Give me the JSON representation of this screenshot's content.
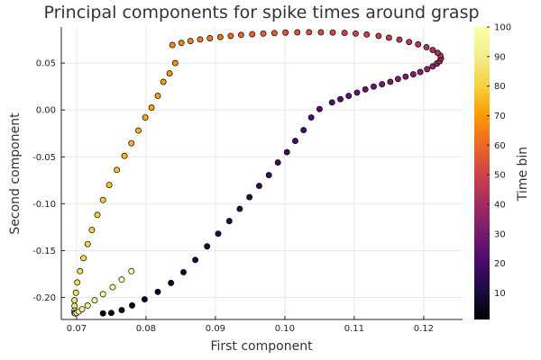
{
  "chart_data": {
    "type": "scatter",
    "title": "Principal components for spike times around grasp",
    "xlabel": "First component",
    "ylabel": "Second component",
    "colorbar_label": "Time bin",
    "xlim": [
      0.0678,
      0.1256
    ],
    "ylim": [
      -0.2235,
      0.0885
    ],
    "xticks": [
      0.07,
      0.08,
      0.09,
      0.1,
      0.11,
      0.12
    ],
    "xtick_labels": [
      "0.07",
      "0.08",
      "0.09",
      "0.10",
      "0.11",
      "0.12"
    ],
    "yticks": [
      0.05,
      0.0,
      -0.05,
      -0.1,
      -0.15,
      -0.2
    ],
    "ytick_labels": [
      "0.05",
      "0.00",
      "-0.05",
      "-0.10",
      "-0.15",
      "-0.20"
    ],
    "colorbar_range": [
      1,
      100
    ],
    "colorbar_ticks": [
      10,
      20,
      30,
      40,
      50,
      60,
      70,
      80,
      90,
      100
    ],
    "colorbar_tick_labels": [
      "10",
      "20",
      "30",
      "40",
      "50",
      "60",
      "70",
      "80",
      "90",
      "100"
    ],
    "colormap": "inferno",
    "grid": true,
    "legend": "none",
    "series": [
      {
        "time_bin": [
          1,
          2,
          3,
          4,
          5,
          6,
          7,
          8,
          9,
          10,
          11,
          12,
          13,
          14,
          15,
          16,
          17,
          18,
          19,
          20,
          21,
          22,
          23,
          24,
          25,
          26,
          27,
          28,
          29,
          30,
          31,
          32,
          33,
          34,
          35,
          36,
          37,
          38,
          39,
          40,
          41,
          42,
          43,
          44,
          45,
          46,
          47,
          48,
          49,
          50,
          51,
          52,
          53,
          54,
          55,
          56,
          57,
          58,
          59,
          60,
          61,
          62,
          63,
          64,
          65,
          66,
          67,
          68,
          69,
          70,
          71,
          72,
          73,
          74,
          75,
          76,
          77,
          78,
          79,
          80,
          81,
          82,
          83,
          84,
          85,
          86,
          87,
          88,
          89,
          90,
          91,
          92,
          93,
          94,
          95,
          96,
          97,
          98,
          99,
          100
        ],
        "x": [
          0.0738,
          0.075,
          0.0765,
          0.078,
          0.0798,
          0.0817,
          0.0836,
          0.0854,
          0.0871,
          0.0888,
          0.0904,
          0.092,
          0.0935,
          0.0949,
          0.0963,
          0.0977,
          0.099,
          0.1003,
          0.1015,
          0.1027,
          0.1038,
          0.105,
          0.1068,
          0.108,
          0.1092,
          0.1104,
          0.1116,
          0.1128,
          0.114,
          0.1152,
          0.1163,
          0.1174,
          0.1185,
          0.1195,
          0.1205,
          0.1213,
          0.1219,
          0.1223,
          0.1225,
          0.1224,
          0.122,
          0.1213,
          0.1204,
          0.1192,
          0.1179,
          0.1165,
          0.115,
          0.1135,
          0.1118,
          0.1102,
          0.1086,
          0.1069,
          0.1052,
          0.1035,
          0.1018,
          0.1001,
          0.0985,
          0.0969,
          0.0953,
          0.0937,
          0.0922,
          0.0907,
          0.0892,
          0.0878,
          0.0864,
          0.0851,
          0.0838,
          0.0842,
          0.0834,
          0.0825,
          0.0817,
          0.0808,
          0.0799,
          0.0789,
          0.0779,
          0.0769,
          0.0758,
          0.0747,
          0.0738,
          0.073,
          0.0722,
          0.0716,
          0.071,
          0.0705,
          0.0701,
          0.0699,
          0.0697,
          0.0697,
          0.0697,
          0.0697,
          0.0698,
          0.07,
          0.0703,
          0.0708,
          0.0716,
          0.0726,
          0.0738,
          0.0752,
          0.0765,
          0.0779
        ],
        "y": [
          -0.217,
          -0.2165,
          -0.2135,
          -0.2085,
          -0.202,
          -0.194,
          -0.1845,
          -0.173,
          -0.16,
          -0.1455,
          -0.132,
          -0.1185,
          -0.1055,
          -0.093,
          -0.081,
          -0.0695,
          -0.056,
          -0.045,
          -0.033,
          -0.0215,
          -0.008,
          0.001,
          0.008,
          0.0115,
          0.015,
          0.0185,
          0.022,
          0.025,
          0.0275,
          0.03,
          0.033,
          0.0355,
          0.038,
          0.0405,
          0.0435,
          0.0465,
          0.0495,
          0.052,
          0.055,
          0.058,
          0.061,
          0.064,
          0.067,
          0.07,
          0.0725,
          0.075,
          0.077,
          0.079,
          0.0805,
          0.0815,
          0.0822,
          0.0826,
          0.0828,
          0.0829,
          0.0828,
          0.0825,
          0.082,
          0.0815,
          0.0808,
          0.08,
          0.079,
          0.0778,
          0.0765,
          0.0752,
          0.0735,
          0.0715,
          0.0693,
          0.05,
          0.039,
          0.03,
          0.015,
          0.0025,
          -0.008,
          -0.022,
          -0.0355,
          -0.049,
          -0.064,
          -0.08,
          -0.096,
          -0.112,
          -0.128,
          -0.143,
          -0.158,
          -0.172,
          -0.184,
          -0.195,
          -0.203,
          -0.209,
          -0.214,
          -0.2165,
          -0.217,
          -0.2165,
          -0.215,
          -0.2125,
          -0.2085,
          -0.203,
          -0.1965,
          -0.189,
          -0.181,
          -0.172
        ]
      }
    ]
  }
}
